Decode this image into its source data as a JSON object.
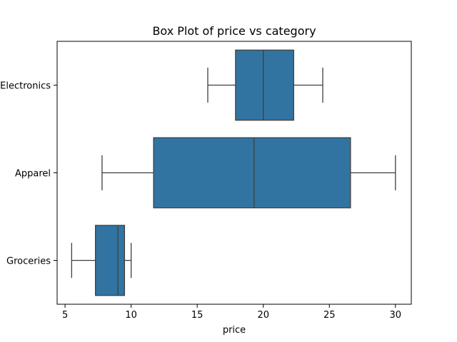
{
  "chart_data": {
    "type": "boxplot",
    "orientation": "horizontal",
    "title": "Box Plot of price vs category",
    "xlabel": "price",
    "ylabel": "",
    "xlim": [
      4.4,
      31.2
    ],
    "xticks": [
      5,
      10,
      15,
      20,
      25,
      30
    ],
    "grid": false,
    "box_color": "#3274a1",
    "line_color": "#3f3f3f",
    "categories": [
      "Electronics",
      "Apparel",
      "Groceries"
    ],
    "series": [
      {
        "category": "Electronics",
        "whisker_low": 15.8,
        "q1": 17.9,
        "median": 20.0,
        "q3": 22.3,
        "whisker_high": 24.5
      },
      {
        "category": "Apparel",
        "whisker_low": 7.8,
        "q1": 11.7,
        "median": 19.3,
        "q3": 26.6,
        "whisker_high": 30.0
      },
      {
        "category": "Groceries",
        "whisker_low": 5.5,
        "q1": 7.3,
        "median": 9.0,
        "q3": 9.5,
        "whisker_high": 10.0
      }
    ]
  }
}
